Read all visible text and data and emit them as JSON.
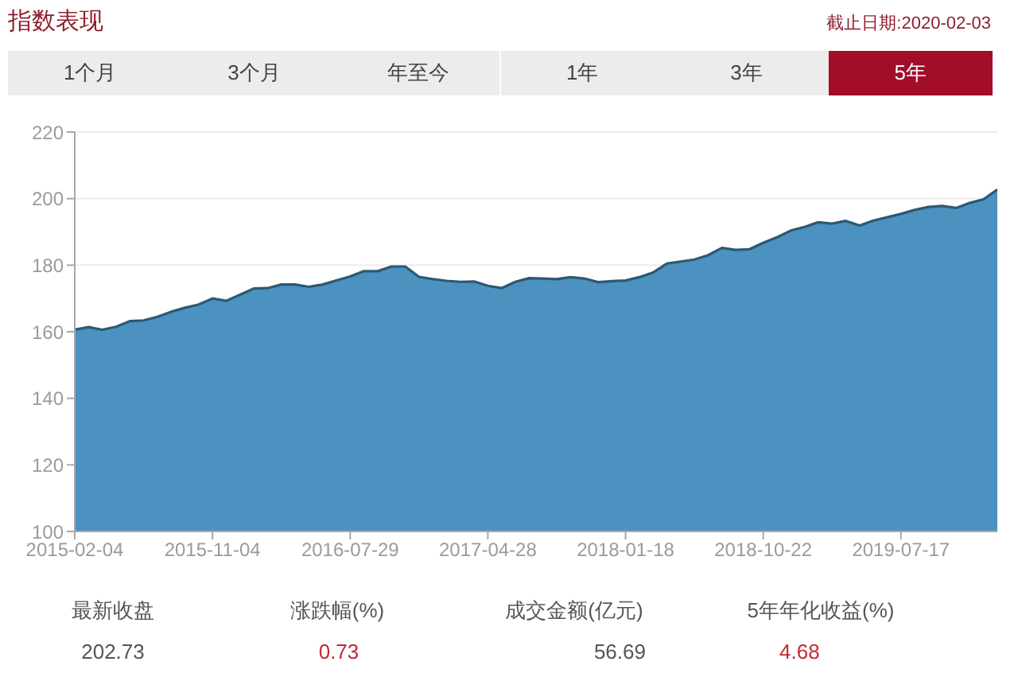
{
  "chart_data": {
    "type": "area",
    "title": "指数表现",
    "subtitle": "截止日期:2020-02-03",
    "categories": [
      "2015-02-04",
      null,
      null,
      null,
      null,
      null,
      null,
      null,
      null,
      null,
      "2015-11-04",
      null,
      null,
      null,
      null,
      null,
      null,
      null,
      null,
      null,
      "2016-07-29",
      null,
      null,
      null,
      null,
      null,
      null,
      null,
      null,
      null,
      "2017-04-28",
      null,
      null,
      null,
      null,
      null,
      null,
      null,
      null,
      null,
      "2018-01-18",
      null,
      null,
      null,
      null,
      null,
      null,
      null,
      null,
      null,
      "2018-10-22",
      null,
      null,
      null,
      null,
      null,
      null,
      null,
      null,
      null,
      "2019-07-17",
      null,
      null,
      null,
      null,
      null,
      null,
      null
    ],
    "values": [
      160.6,
      161.4,
      160.6,
      161.5,
      163.2,
      163.4,
      164.5,
      166.0,
      167.2,
      168.2,
      170.0,
      169.3,
      171.1,
      173.0,
      173.1,
      174.2,
      174.2,
      173.5,
      174.2,
      175.4,
      176.6,
      178.2,
      178.2,
      179.6,
      179.6,
      176.5,
      175.8,
      175.3,
      175.0,
      175.1,
      173.8,
      173.1,
      175.0,
      176.1,
      176.0,
      175.8,
      176.4,
      176.0,
      174.9,
      175.2,
      175.4,
      176.4,
      177.8,
      180.5,
      181.1,
      181.7,
      183.0,
      185.2,
      184.6,
      184.8,
      186.7,
      188.4,
      190.4,
      191.5,
      192.9,
      192.5,
      193.3,
      191.9,
      193.4,
      194.4,
      195.4,
      196.6,
      197.5,
      197.8,
      197.2,
      198.7,
      199.8,
      202.7
    ],
    "color": "#4b92c0",
    "ylim": [
      100,
      220
    ],
    "yticks": [
      100,
      120,
      140,
      160,
      180,
      200,
      220
    ],
    "grid": "y",
    "annotations": [
      "1个月",
      "3个月",
      "年至今",
      "1年",
      "3年",
      "5年",
      "最新收盘",
      "202.73",
      "涨跌幅(%)",
      "0.73",
      "成交金额(亿元)",
      "56.69",
      "5年年化收益(%)",
      "4.68"
    ]
  }
}
